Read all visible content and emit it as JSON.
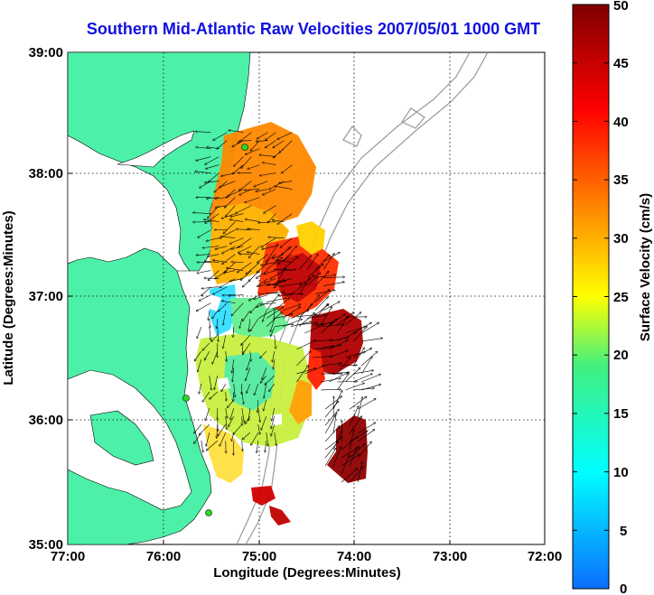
{
  "title": "Southern Mid-Atlantic Raw Velocities 2007/05/01 1000 GMT",
  "xlabel": "Longitude (Degrees:Minutes)",
  "ylabel": "Latitude (Degrees:Minutes)",
  "x_ticks": [
    "77:00",
    "76:00",
    "75:00",
    "74:00",
    "73:00",
    "72:00"
  ],
  "y_ticks": [
    "39:00",
    "38:00",
    "37:00",
    "36:00",
    "35:00"
  ],
  "colorbar": {
    "label": "Surface Velocity (cm/s)",
    "ticks": [
      "50",
      "45",
      "40",
      "35",
      "30",
      "25",
      "20",
      "15",
      "10",
      "5",
      "0"
    ],
    "range": [
      0,
      50
    ]
  },
  "chart_data": {
    "type": "map",
    "xlim": [
      -77,
      -72
    ],
    "ylim": [
      35,
      39
    ],
    "grid": true,
    "colors": {
      "land": "#4df0a8",
      "axes_bg": "#ffffff",
      "title": "#1010e0",
      "bathymetry": "#999999",
      "stations": "#22dd22"
    },
    "stations": [
      {
        "lon": -75.15,
        "lat": 38.22
      },
      {
        "lon": -75.72,
        "lat": 36.18
      },
      {
        "lon": -75.5,
        "lat": 35.32
      }
    ],
    "velocity_regions": [
      {
        "lon_range": [
          -75.5,
          -74.6
        ],
        "lat_range": [
          36.95,
          38.35
        ],
        "speed_range": [
          20,
          40
        ]
      },
      {
        "lon_range": [
          -75.0,
          -74.25
        ],
        "lat_range": [
          36.75,
          37.3
        ],
        "speed_range": [
          40,
          50
        ]
      },
      {
        "lon_range": [
          -75.6,
          -74.8
        ],
        "lat_range": [
          35.8,
          36.9
        ],
        "speed_range": [
          10,
          30
        ]
      },
      {
        "lon_range": [
          -74.6,
          -73.9
        ],
        "lat_range": [
          36.25,
          36.85
        ],
        "speed_range": [
          45,
          50
        ]
      },
      {
        "lon_range": [
          -74.3,
          -73.95
        ],
        "lat_range": [
          35.5,
          36.1
        ],
        "speed_range": [
          48,
          50
        ]
      }
    ]
  }
}
